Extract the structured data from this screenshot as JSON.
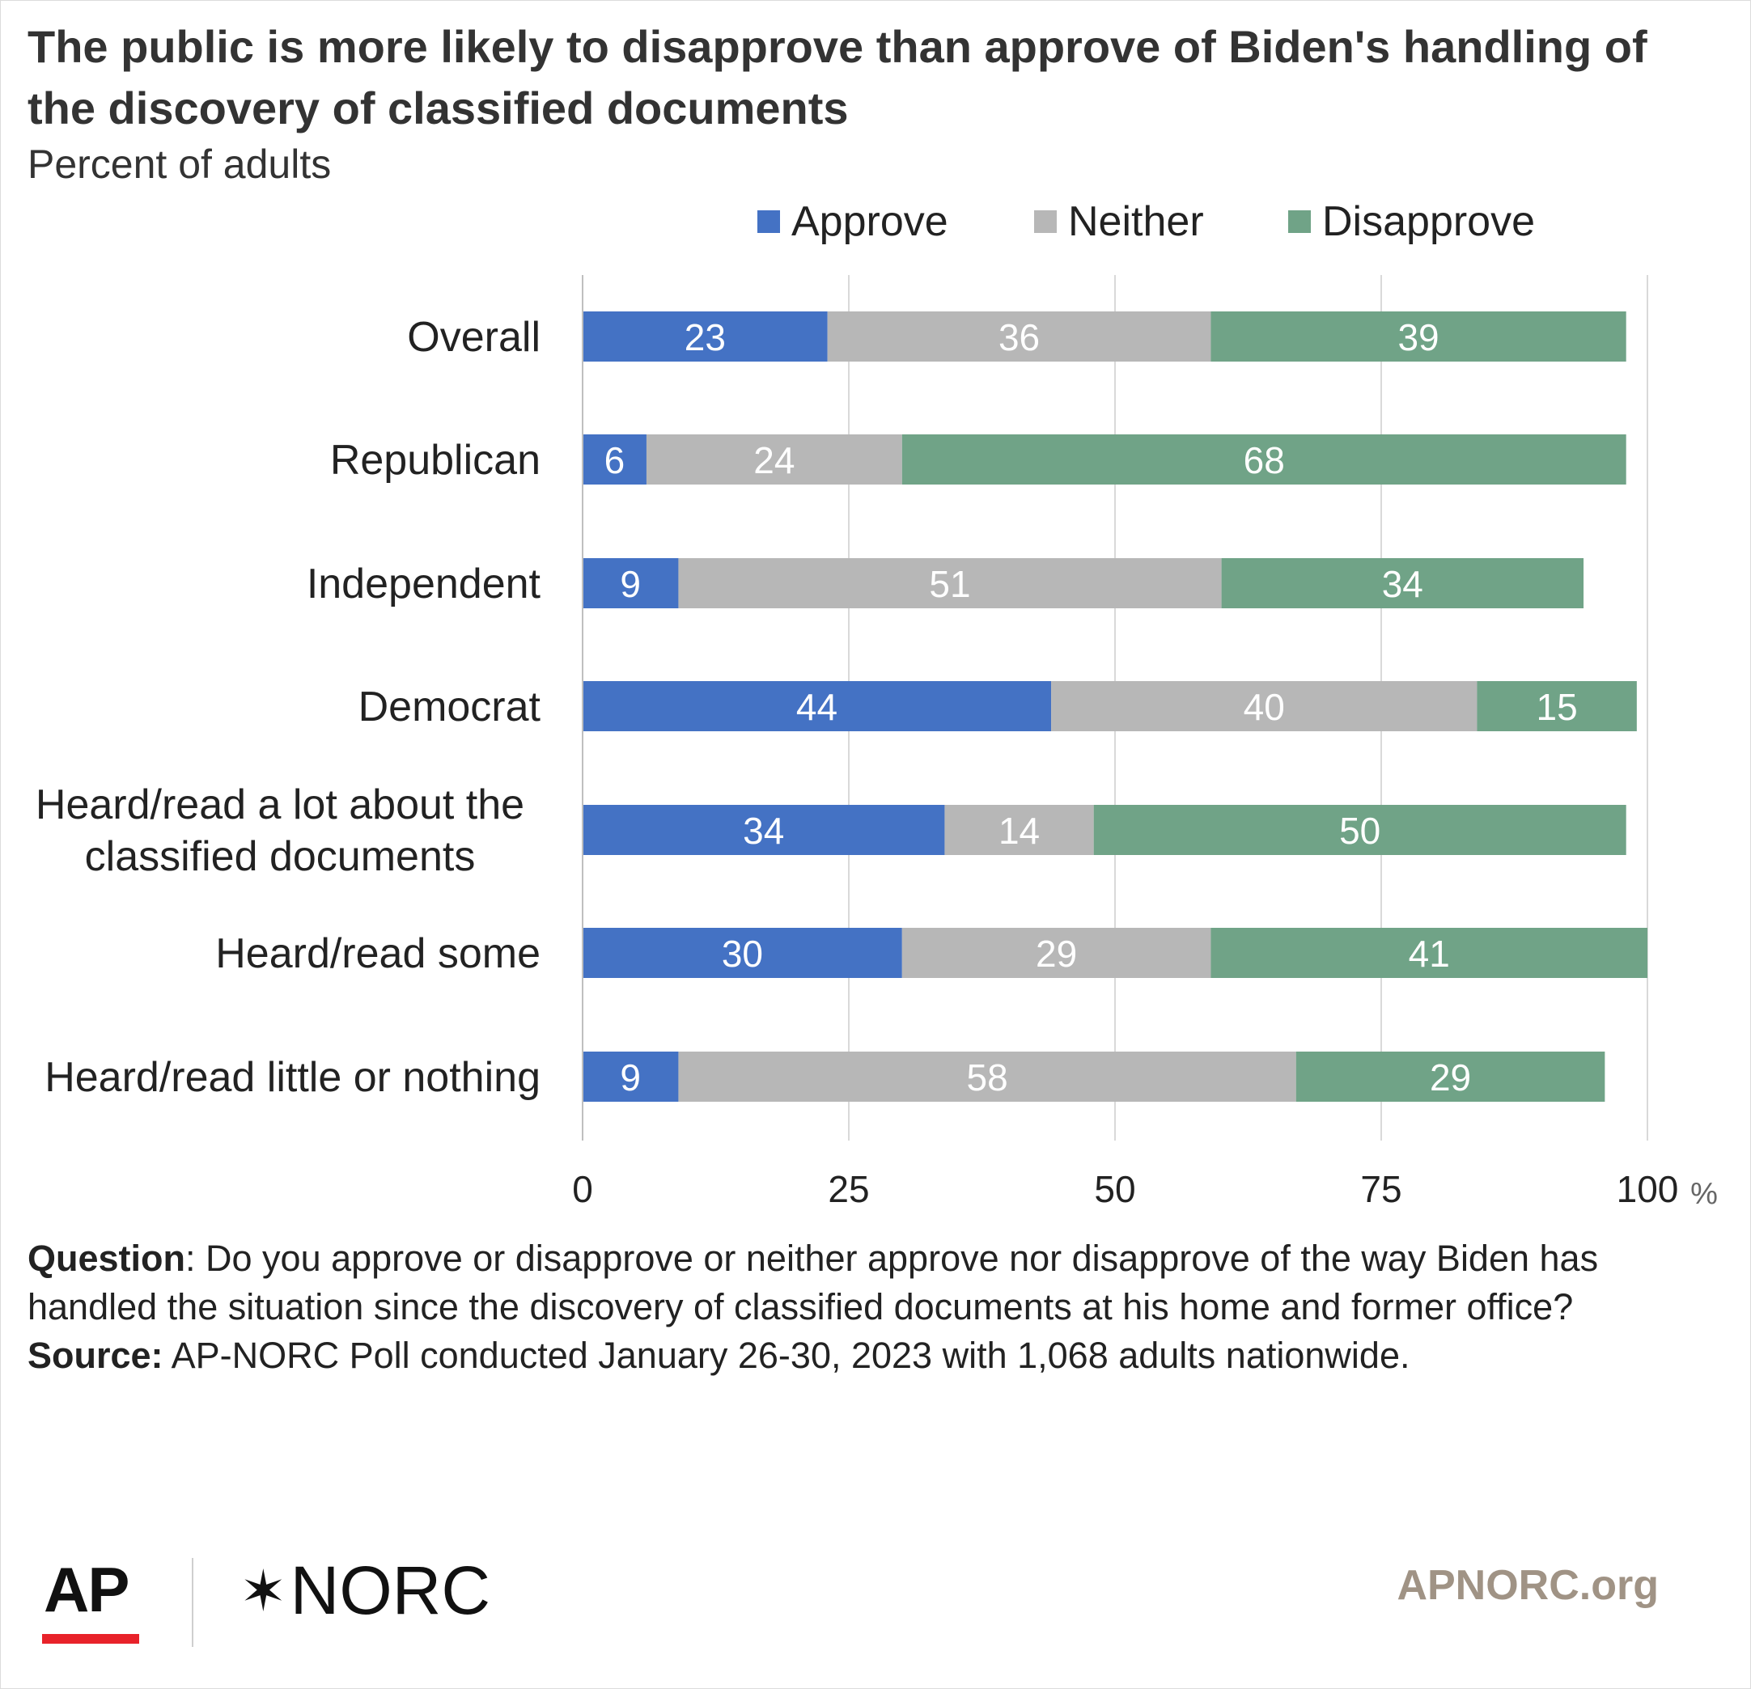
{
  "title": "The public is more likely to disapprove than approve of Biden's handling of the discovery of classified documents",
  "subtitle": "Percent of adults",
  "legend": [
    {
      "label": "Approve",
      "color": "#4472c4"
    },
    {
      "label": "Neither",
      "color": "#b7b7b7"
    },
    {
      "label": "Disapprove",
      "color": "#70a387"
    }
  ],
  "chart_data": {
    "type": "bar",
    "orientation": "horizontal",
    "stacked": true,
    "categories": [
      [
        "Overall"
      ],
      [
        "Republican"
      ],
      [
        "Independent"
      ],
      [
        "Democrat"
      ],
      [
        "Heard/read a lot about the",
        "classified documents"
      ],
      [
        "Heard/read some"
      ],
      [
        "Heard/read little or nothing"
      ]
    ],
    "series": [
      {
        "name": "Approve",
        "color": "#4472c4",
        "values": [
          23,
          6,
          9,
          44,
          34,
          30,
          9
        ]
      },
      {
        "name": "Neither",
        "color": "#b7b7b7",
        "values": [
          36,
          24,
          51,
          40,
          14,
          29,
          58
        ]
      },
      {
        "name": "Disapprove",
        "color": "#70a387",
        "values": [
          39,
          68,
          34,
          15,
          50,
          41,
          29
        ]
      }
    ],
    "xlim": [
      0,
      100
    ],
    "xticks": [
      "0",
      "25",
      "50",
      "75",
      "100"
    ],
    "xunit": "%",
    "grid": true,
    "legend_position": "top"
  },
  "notes": {
    "question_label": "Question",
    "question_text": ": Do you approve or disapprove or neither approve nor disapprove of the way Biden has handled the situation since the discovery of classified documents at his home and former office?",
    "source_label": "Source:",
    "source_text": " AP-NORC Poll conducted January 26-30, 2023 with 1,068 adults nationwide."
  },
  "footer": {
    "ap_logo": "AP",
    "norc_logo_star": "✶",
    "norc_logo": "NORC",
    "url": "APNORC.org"
  }
}
